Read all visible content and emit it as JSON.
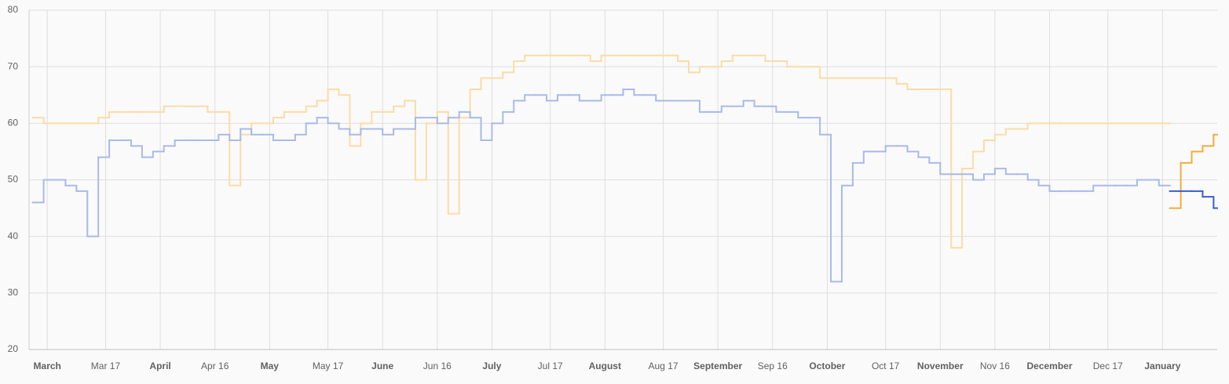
{
  "chart_data": {
    "type": "step-line",
    "xlim": [
      -5,
      321
    ],
    "ylim": [
      20,
      80
    ],
    "yticks": [
      20,
      30,
      40,
      50,
      60,
      70,
      80
    ],
    "xticks": [
      {
        "value": 0,
        "label": "March"
      },
      {
        "value": 16,
        "label": "Mar 17"
      },
      {
        "value": 31,
        "label": "April"
      },
      {
        "value": 46,
        "label": "Apr 16"
      },
      {
        "value": 61,
        "label": "May"
      },
      {
        "value": 77,
        "label": "May 17"
      },
      {
        "value": 92,
        "label": "June"
      },
      {
        "value": 107,
        "label": "Jun 16"
      },
      {
        "value": 122,
        "label": "July"
      },
      {
        "value": 138,
        "label": "Jul 17"
      },
      {
        "value": 153,
        "label": "August"
      },
      {
        "value": 169,
        "label": "Aug 17"
      },
      {
        "value": 184,
        "label": "September"
      },
      {
        "value": 199,
        "label": "Sep 16"
      },
      {
        "value": 214,
        "label": "October"
      },
      {
        "value": 230,
        "label": "Oct 17"
      },
      {
        "value": 245,
        "label": "November"
      },
      {
        "value": 260,
        "label": "Nov 16"
      },
      {
        "value": 275,
        "label": "December"
      },
      {
        "value": 291,
        "label": "Dec 17"
      },
      {
        "value": 306,
        "label": "January"
      }
    ],
    "grid": true,
    "series": [
      {
        "color": "#fbdca6",
        "x": [
          -4,
          -1,
          2,
          5,
          8,
          11,
          14,
          17,
          20,
          23,
          26,
          29,
          32,
          35,
          38,
          41,
          44,
          47,
          50,
          53,
          56,
          59,
          62,
          65,
          68,
          71,
          74,
          77,
          80,
          83,
          86,
          89,
          92,
          95,
          98,
          101,
          104,
          107,
          110,
          113,
          116,
          119,
          122,
          125,
          128,
          131,
          134,
          137,
          140,
          143,
          146,
          149,
          152,
          155,
          158,
          161,
          164,
          167,
          170,
          173,
          176,
          179,
          182,
          185,
          188,
          191,
          194,
          197,
          200,
          203,
          206,
          209,
          212,
          215,
          218,
          221,
          224,
          227,
          230,
          233,
          236,
          239,
          242,
          245,
          248,
          251,
          254,
          257,
          260,
          263,
          266,
          269,
          272,
          275,
          278,
          281,
          284,
          287,
          290,
          293,
          296,
          299,
          302,
          305
        ],
        "values": [
          61,
          60,
          60,
          60,
          60,
          60,
          61,
          62,
          62,
          62,
          62,
          62,
          63,
          63,
          63,
          63,
          62,
          62,
          49,
          58,
          60,
          60,
          61,
          62,
          62,
          63,
          64,
          66,
          65,
          56,
          60,
          62,
          62,
          63,
          64,
          50,
          60,
          62,
          44,
          61,
          66,
          68,
          68,
          69,
          71,
          72,
          72,
          72,
          72,
          72,
          72,
          71,
          72,
          72,
          72,
          72,
          72,
          72,
          72,
          71,
          69,
          70,
          70,
          71,
          72,
          72,
          72,
          71,
          71,
          70,
          70,
          70,
          68,
          68,
          68,
          68,
          68,
          68,
          68,
          67,
          66,
          66,
          66,
          66,
          38,
          52,
          55,
          57,
          58,
          59,
          59,
          60,
          60,
          60,
          60,
          60,
          60,
          60,
          60,
          60,
          60,
          60,
          60,
          60
        ]
      },
      {
        "color": "#a9bae8",
        "x": [
          -4,
          -1,
          2,
          5,
          8,
          11,
          14,
          17,
          20,
          23,
          26,
          29,
          32,
          35,
          38,
          41,
          44,
          47,
          50,
          53,
          56,
          59,
          62,
          65,
          68,
          71,
          74,
          77,
          80,
          83,
          86,
          89,
          92,
          95,
          98,
          101,
          104,
          107,
          110,
          113,
          116,
          119,
          122,
          125,
          128,
          131,
          134,
          137,
          140,
          143,
          146,
          149,
          152,
          155,
          158,
          161,
          164,
          167,
          170,
          173,
          176,
          179,
          182,
          185,
          188,
          191,
          194,
          197,
          200,
          203,
          206,
          209,
          212,
          215,
          218,
          221,
          224,
          227,
          230,
          233,
          236,
          239,
          242,
          245,
          248,
          251,
          254,
          257,
          260,
          263,
          266,
          269,
          272,
          275,
          278,
          281,
          284,
          287,
          290,
          293,
          296,
          299,
          302,
          305
        ],
        "values": [
          46,
          50,
          50,
          49,
          48,
          40,
          54,
          57,
          57,
          56,
          54,
          55,
          56,
          57,
          57,
          57,
          57,
          58,
          57,
          59,
          58,
          58,
          57,
          57,
          58,
          60,
          61,
          60,
          59,
          58,
          59,
          59,
          58,
          59,
          59,
          61,
          61,
          60,
          61,
          62,
          61,
          57,
          60,
          62,
          64,
          65,
          65,
          64,
          65,
          65,
          64,
          64,
          65,
          65,
          66,
          65,
          65,
          64,
          64,
          64,
          64,
          62,
          62,
          63,
          63,
          64,
          63,
          63,
          62,
          62,
          61,
          61,
          58,
          32,
          49,
          53,
          55,
          55,
          56,
          56,
          55,
          54,
          53,
          51,
          51,
          51,
          50,
          51,
          52,
          51,
          51,
          50,
          49,
          48,
          48,
          48,
          48,
          49,
          49,
          49,
          49,
          50,
          50,
          49
        ]
      },
      {
        "color": "#f2ad3a",
        "x": [
          308,
          311,
          314,
          317,
          320
        ],
        "values": [
          45,
          53,
          55,
          56,
          58
        ]
      },
      {
        "color": "#3b5fc8",
        "x": [
          308,
          311,
          314,
          317,
          320
        ],
        "values": [
          48,
          48,
          48,
          47,
          45
        ]
      }
    ]
  }
}
